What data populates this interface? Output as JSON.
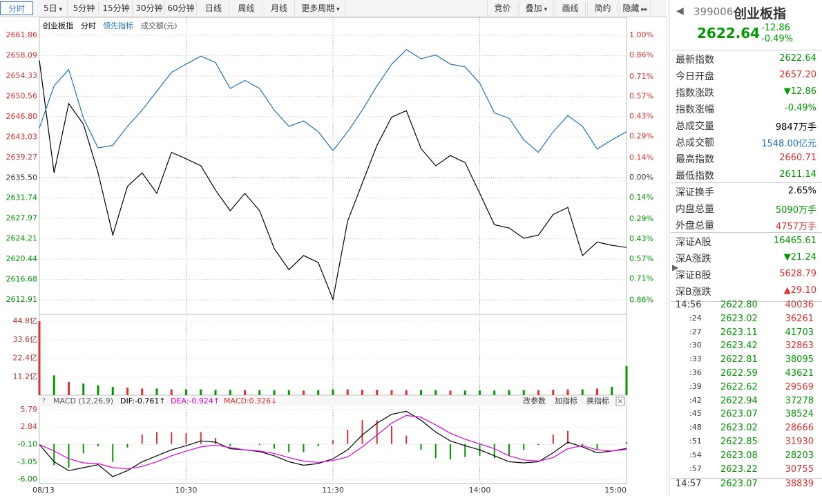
{
  "toolbar": {
    "periods": [
      "分时",
      "5日",
      "5分钟",
      "15分钟",
      "30分钟",
      "60分钟",
      "日线",
      "周线",
      "月线",
      "更多周期"
    ],
    "tools": [
      "竞价",
      "叠加",
      "画线",
      "简约",
      "隐藏"
    ]
  },
  "chart_data": [
    {
      "type": "line",
      "title": "创业板指",
      "note": "成交额(元)",
      "x": [
        0,
        6,
        12,
        18,
        24,
        30,
        36,
        42,
        48,
        54,
        60,
        66,
        72,
        78,
        84,
        90,
        96,
        102,
        108,
        114,
        120,
        126,
        132,
        138,
        144,
        150,
        156,
        162,
        168,
        174,
        180,
        186,
        192,
        198,
        204,
        210,
        216,
        222,
        228,
        234,
        240
      ],
      "series": [
        {
          "name": "分时",
          "color": "#000000",
          "values": [
            2657.2,
            2636.4,
            2649.2,
            2645.4,
            2636.4,
            2624.9,
            2633.9,
            2636.4,
            2632.6,
            2640.2,
            2639.0,
            2637.7,
            2633.2,
            2629.4,
            2632.6,
            2629.4,
            2622.4,
            2618.5,
            2621.1,
            2619.8,
            2613.0,
            2627.5,
            2634.5,
            2641.5,
            2646.7,
            2647.9,
            2640.9,
            2637.7,
            2639.6,
            2638.3,
            2632.6,
            2626.8,
            2626.2,
            2624.3,
            2624.9,
            2628.7,
            2630.0,
            2621.1,
            2623.6,
            2623.0,
            2622.6
          ]
        },
        {
          "name": "领先指标",
          "color": "#1f6fc0",
          "values": [
            2644.7,
            2652.5,
            2655.5,
            2646.5,
            2641.0,
            2641.5,
            2645.0,
            2648.0,
            2651.5,
            2655.0,
            2656.5,
            2658.0,
            2656.8,
            2652.0,
            2653.5,
            2652.0,
            2648.0,
            2645.0,
            2646.0,
            2644.0,
            2640.5,
            2644.0,
            2648.0,
            2652.5,
            2656.5,
            2659.2,
            2657.5,
            2658.2,
            2656.5,
            2656.0,
            2653.0,
            2647.5,
            2646.5,
            2642.5,
            2640.2,
            2644.0,
            2647.0,
            2645.0,
            2640.8,
            2642.5,
            2644.0
          ]
        }
      ],
      "xlim": [
        0,
        240
      ],
      "xticks": [
        {
          "value": 0,
          "label": "08/13"
        },
        {
          "value": 60,
          "label": "10:30"
        },
        {
          "value": 120,
          "label": "11:30"
        },
        {
          "value": 180,
          "label": "14:00"
        },
        {
          "value": 240,
          "label": "15:00"
        }
      ],
      "ylim": [
        2610.23,
        2665.18
      ],
      "yticks": [
        2661.86,
        2658.09,
        2654.33,
        2650.56,
        {
          "value": 2646.8,
          "label": "2646.80"
        },
        2643.03,
        2639.27,
        {
          "value": 2635.5,
          "label": "2635.50"
        },
        2631.74,
        2627.97,
        2624.21,
        2620.44,
        2616.68,
        2612.91
      ],
      "y2lim": [
        -0.959,
        1.126
      ],
      "y2ticks": [
        {
          "value": 1,
          "label": "1.00%"
        },
        {
          "value": 0.86,
          "label": "0.86%"
        },
        {
          "value": 0.71,
          "label": "0.71%"
        },
        {
          "value": 0.57,
          "label": "0.57%"
        },
        {
          "value": 0.43,
          "label": "0.43%"
        },
        {
          "value": 0.29,
          "label": "0.29%"
        },
        {
          "value": 0.14,
          "label": "0.14%"
        },
        {
          "value": 0,
          "label": "0.00%"
        },
        {
          "value": -0.14,
          "label": "0.14%"
        },
        {
          "value": -0.29,
          "label": "0.29%"
        },
        {
          "value": -0.43,
          "label": "0.43%"
        },
        {
          "value": -0.57,
          "label": "0.57%"
        },
        {
          "value": -0.71,
          "label": "0.71%"
        },
        {
          "value": -0.86,
          "label": "0.86%"
        }
      ],
      "up_color": "#e03030",
      "down_color": "#009900",
      "grid": true
    },
    {
      "type": "bar",
      "values": [
        44.8,
        12,
        8,
        7,
        6,
        5,
        4.5,
        4,
        4,
        3.5,
        3.5,
        3.5,
        3.2,
        3.2,
        3,
        3,
        3,
        3,
        2.8,
        3,
        3.5,
        3.5,
        3.2,
        3.2,
        3,
        3,
        3,
        3,
        2.8,
        2.8,
        2.8,
        2.8,
        3,
        3,
        3,
        3.2,
        3.5,
        3.5,
        4,
        5,
        17.6
      ],
      "ylim": [
        0,
        49
      ],
      "yticks": [
        {
          "value": 44.8,
          "label": "44.8亿"
        },
        {
          "value": 33.6,
          "label": "33.6亿"
        },
        {
          "value": 22.4,
          "label": "22.4亿"
        },
        {
          "value": 11.2,
          "label": "11.2亿"
        }
      ],
      "up_color": "#e03030",
      "down_color": "#009900"
    },
    {
      "type": "macd",
      "title": "MACD (12,26,9)",
      "series": [
        {
          "name": "DIF:-0.761↑",
          "color": "#000000",
          "values": [
            -0.1,
            -3,
            -4.5,
            -4,
            -3.5,
            -5.5,
            -4.5,
            -3,
            -2,
            -1,
            -0.3,
            0.5,
            0.3,
            -0.8,
            -1,
            -1.3,
            -2,
            -3,
            -3.6,
            -3.3,
            -2.5,
            -1,
            1.5,
            3.5,
            5,
            5.5,
            4,
            2,
            0.5,
            -0.3,
            -1,
            -2,
            -3,
            -3.2,
            -3,
            -1.5,
            0.3,
            -0.5,
            -1.5,
            -1.2,
            -0.76
          ]
        },
        {
          "name": "DEA:-0.924↑",
          "color": "#e000e0",
          "values": [
            -0.1,
            -1.2,
            -2.5,
            -3.2,
            -3.3,
            -4,
            -4.2,
            -3.8,
            -3,
            -2,
            -1.2,
            -0.5,
            -0.2,
            -0.6,
            -1,
            -1.2,
            -1.6,
            -2.3,
            -2.9,
            -3.1,
            -2.8,
            -2.2,
            -0.5,
            1.5,
            3.5,
            4.8,
            4.5,
            3.2,
            1.8,
            0.8,
            0,
            -0.8,
            -2,
            -2.7,
            -2.9,
            -2.3,
            -0.8,
            -0.3,
            -1,
            -1.2,
            -0.92
          ]
        },
        {
          "name": "MACD:0.326↓",
          "color": "#e03030",
          "values": [
            0,
            -3.6,
            -4,
            -1.6,
            -0.4,
            -3,
            -0.6,
            1.6,
            2,
            2,
            1.8,
            2,
            1,
            -0.4,
            0,
            -0.2,
            -0.8,
            -1.4,
            -1.4,
            -0.4,
            0.6,
            2.4,
            4,
            4,
            3,
            1.4,
            -1,
            -2.4,
            -2.6,
            -2.2,
            -2,
            -2.4,
            -2,
            -1,
            -0.2,
            1.6,
            2.2,
            -0.4,
            -1,
            0,
            0.33
          ]
        }
      ],
      "ylim": [
        -6.68,
        6.36
      ],
      "yticks": [
        5.79,
        2.84,
        {
          "value": -0.1,
          "label": "-0.10"
        },
        -3.05,
        {
          "value": -6,
          "label": "-6.00"
        }
      ],
      "up_color": "#e03030",
      "down_color": "#009900",
      "buttons": [
        "改参数",
        "加指标",
        "换指标"
      ]
    }
  ],
  "quote": {
    "code": "399006",
    "name": "创业板指",
    "price": "2622.64",
    "change": "-12.86",
    "change_pct": "-0.49%",
    "price_color": "#009900",
    "groups": [
      [
        {
          "label": "最新指数",
          "value": "2622.64",
          "color": "#009900"
        },
        {
          "label": "今日开盘",
          "value": "2657.20",
          "color": "#e03030"
        },
        {
          "label": "指数涨跌",
          "value": "▼12.86",
          "color": "#009900"
        },
        {
          "label": "指数涨幅",
          "value": "-0.49%",
          "color": "#009900"
        },
        {
          "label": "总成交量",
          "value": "9847万手",
          "color": "#000000"
        },
        {
          "label": "总成交额",
          "value": "1548.00亿元",
          "color": "#1f6fc0"
        },
        {
          "label": "最高指数",
          "value": "2660.71",
          "color": "#e03030"
        },
        {
          "label": "最低指数",
          "value": "2611.14",
          "color": "#009900"
        }
      ],
      [
        {
          "label": "深证换手",
          "value": "2.65%",
          "color": "#000000"
        },
        {
          "label": "内盘总量",
          "value": "5090万手",
          "color": "#009900"
        },
        {
          "label": "外盘总量",
          "value": "4757万手",
          "color": "#e03030"
        }
      ],
      [
        {
          "label": "深证A股",
          "value": "16465.61",
          "color": "#009900"
        },
        {
          "label": "深A涨跌",
          "value": "▼21.24",
          "color": "#009900"
        },
        {
          "label": "深证B股",
          "value": "5628.79",
          "color": "#e03030"
        },
        {
          "label": "深B涨跌",
          "value": "▲29.10",
          "color": "#e03030"
        }
      ]
    ],
    "tick_price_color": "#009900",
    "ticks": [
      {
        "time": "14:56",
        "price": "2622.80",
        "volume": "40036",
        "color": "#e03030"
      },
      {
        "time": ":24",
        "price": "2623.02",
        "volume": "36261",
        "color": "#e03030"
      },
      {
        "time": ":27",
        "price": "2623.11",
        "volume": "41703",
        "color": "#009900"
      },
      {
        "time": ":30",
        "price": "2623.42",
        "volume": "32863",
        "color": "#e03030"
      },
      {
        "time": ":33",
        "price": "2622.81",
        "volume": "38095",
        "color": "#009900"
      },
      {
        "time": ":36",
        "price": "2622.59",
        "volume": "43621",
        "color": "#009900"
      },
      {
        "time": ":39",
        "price": "2622.62",
        "volume": "29569",
        "color": "#e03030"
      },
      {
        "time": ":42",
        "price": "2622.94",
        "volume": "37278",
        "color": "#009900"
      },
      {
        "time": ":45",
        "price": "2623.07",
        "volume": "38524",
        "color": "#009900"
      },
      {
        "time": ":48",
        "price": "2623.02",
        "volume": "28666",
        "color": "#e03030"
      },
      {
        "time": ":51",
        "price": "2622.85",
        "volume": "31930",
        "color": "#e03030"
      },
      {
        "time": ":54",
        "price": "2623.08",
        "volume": "28203",
        "color": "#009900"
      },
      {
        "time": ":57",
        "price": "2623.22",
        "volume": "30755",
        "color": "#e03030"
      },
      {
        "time": "14:57",
        "price": "2623.07",
        "volume": "38839",
        "color": "#e03030"
      }
    ]
  }
}
